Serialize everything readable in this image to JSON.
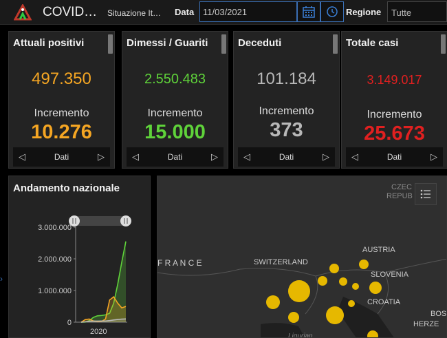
{
  "header": {
    "title": "COVID…",
    "subtitle": "Situazione It…",
    "date_label": "Data",
    "date_value": "11/03/2021",
    "region_label": "Regione",
    "region_value": "Tutte"
  },
  "cards": [
    {
      "title": "Attuali positivi",
      "value": "497.350",
      "increment_label": "Incremento",
      "increment": "10.276",
      "color": "#f5a623",
      "footer_label": "Dati"
    },
    {
      "title": "Dimessi / Guariti",
      "value": "2.550.483",
      "increment_label": "Incremento",
      "increment": "15.000",
      "color": "#5fd33a",
      "footer_label": "Dati"
    },
    {
      "title": "Deceduti",
      "value": "101.184",
      "increment_label": "Incremento",
      "increment": "373",
      "color": "#b8b8b8",
      "footer_label": "Dati"
    },
    {
      "title": "Totale casi",
      "value": "3.149.017",
      "increment_label": "Incremento",
      "increment": "25.673",
      "color": "#e02020",
      "footer_label": "Dati"
    }
  ],
  "trend": {
    "title": "Andamento nazionale",
    "y_ticks": [
      "3.000.000",
      "2.000.000",
      "1.000.000",
      "0"
    ],
    "x_label": "2020"
  },
  "chart_data": {
    "type": "line",
    "title": "Andamento nazionale",
    "xlabel": "",
    "ylabel": "",
    "x_ticks": [
      "2020"
    ],
    "ylim": [
      0,
      3000000
    ],
    "series": [
      {
        "color": "#5fd33a",
        "values": [
          0,
          5000,
          50000,
          150000,
          200000,
          210000,
          230000,
          280000,
          600000,
          1200000,
          1900000,
          2550483
        ]
      },
      {
        "color": "#f5a623",
        "values": [
          0,
          80000,
          100000,
          40000,
          15000,
          20000,
          100000,
          700000,
          800000,
          600000,
          450000,
          497350
        ]
      },
      {
        "color": "#b8b8b8",
        "values": [
          0,
          10000,
          30000,
          34000,
          35000,
          36000,
          38000,
          50000,
          70000,
          85000,
          95000,
          101184
        ]
      }
    ]
  },
  "map": {
    "labels": [
      {
        "text": "CZEC",
        "color": "#8a8a8a"
      },
      {
        "text": "REPUB",
        "color": "#8a8a8a"
      },
      {
        "text": "AUSTRIA",
        "color": "#cccccc"
      },
      {
        "text": "F R A N C E",
        "color": "#cccccc"
      },
      {
        "text": "SWITZERLAND",
        "color": "#cccccc"
      },
      {
        "text": "SLOVENIA",
        "color": "#cccccc"
      },
      {
        "text": "CROATIA",
        "color": "#cccccc"
      },
      {
        "text": "BOSNI",
        "color": "#cccccc"
      },
      {
        "text": "HERZE",
        "color": "#cccccc"
      },
      {
        "text": "Ligurian",
        "color": "#888888"
      }
    ],
    "bubble_color": "#e6b800"
  }
}
